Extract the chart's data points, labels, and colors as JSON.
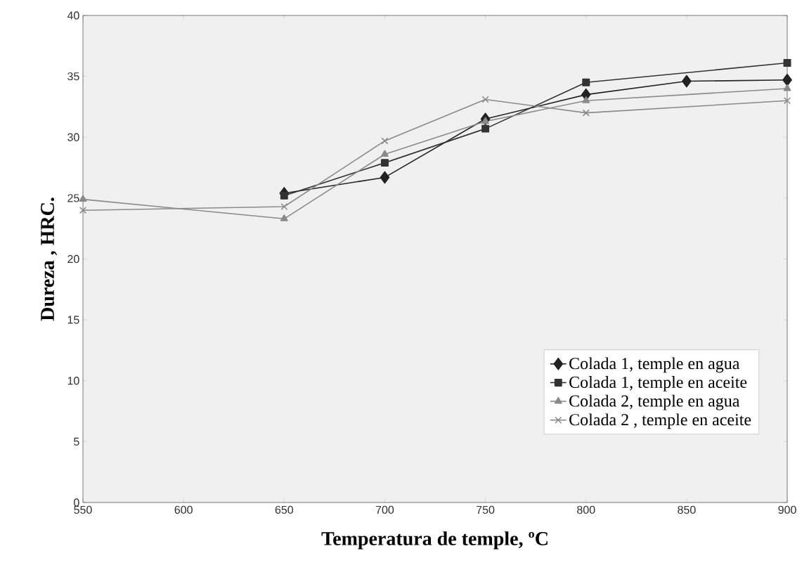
{
  "chart_data": {
    "type": "line",
    "xlabel": "Temperatura de temple, ºC",
    "ylabel": "Dureza , HRC.",
    "xlim": [
      550,
      900
    ],
    "xticks": [
      550,
      600,
      650,
      700,
      750,
      800,
      850,
      900
    ],
    "ylim": [
      0,
      40
    ],
    "yticks": [
      0,
      5,
      10,
      15,
      20,
      25,
      30,
      35,
      40
    ],
    "grid": false,
    "legend": "bottom right",
    "series": [
      {
        "name": "Colada 1, temple en agua",
        "color": "#222222",
        "marker": "diamond",
        "x": [
          650,
          700,
          750,
          800,
          850,
          900
        ],
        "values": [
          25.4,
          26.7,
          31.5,
          33.5,
          34.6,
          34.7
        ]
      },
      {
        "name": "Colada 1, temple en aceite",
        "color": "#333333",
        "marker": "square",
        "x": [
          650,
          700,
          750,
          800,
          900
        ],
        "values": [
          25.2,
          27.9,
          30.7,
          34.5,
          36.1
        ]
      },
      {
        "name": "Colada 2, temple en agua",
        "color": "#8a8a8a",
        "marker": "triangle",
        "x": [
          550,
          650,
          700,
          750,
          800,
          900
        ],
        "values": [
          24.9,
          23.3,
          28.6,
          31.3,
          33.0,
          34.0
        ]
      },
      {
        "name": "Colada 2 , temple en aceite",
        "color": "#8a8a8a",
        "marker": "cross",
        "x": [
          550,
          650,
          700,
          750,
          800,
          900
        ],
        "values": [
          24.0,
          24.3,
          29.7,
          33.1,
          32.0,
          33.0
        ]
      }
    ]
  }
}
